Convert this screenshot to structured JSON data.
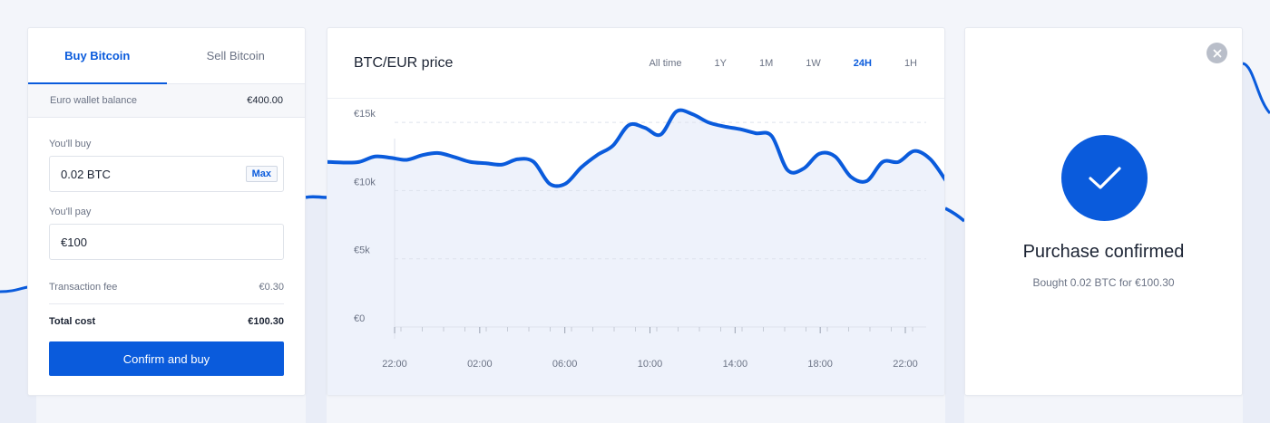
{
  "colors": {
    "accent": "#0a5bdc",
    "line": "#0a5bdc",
    "area": "#eef2fb",
    "background": "#f3f5fa",
    "muted_text": "#6b7385"
  },
  "buy_panel": {
    "tabs": [
      {
        "label": "Buy Bitcoin",
        "active": true
      },
      {
        "label": "Sell Bitcoin",
        "active": false
      }
    ],
    "balance": {
      "label": "Euro wallet balance",
      "value": "€400.00"
    },
    "buy_field": {
      "label": "You'll buy",
      "value": "0.02 BTC",
      "max_label": "Max"
    },
    "pay_field": {
      "label": "You'll pay",
      "value": "€100"
    },
    "fee": {
      "label": "Transaction fee",
      "value": "€0.30"
    },
    "total": {
      "label": "Total cost",
      "value": "€100.30"
    },
    "confirm_label": "Confirm and buy"
  },
  "chart_panel": {
    "title": "BTC/EUR price",
    "ranges": [
      {
        "label": "All time",
        "active": false
      },
      {
        "label": "1Y",
        "active": false
      },
      {
        "label": "1M",
        "active": false
      },
      {
        "label": "1W",
        "active": false
      },
      {
        "label": "24H",
        "active": true
      },
      {
        "label": "1H",
        "active": false
      }
    ]
  },
  "chart_data": {
    "type": "area",
    "title": "BTC/EUR price",
    "xlabel": "",
    "ylabel": "",
    "y_ticks": [
      {
        "value": 0,
        "label": "€0"
      },
      {
        "value": 5000,
        "label": "€5k"
      },
      {
        "value": 10000,
        "label": "€10k"
      },
      {
        "value": 15000,
        "label": "€15k"
      }
    ],
    "ylim": [
      0,
      16000
    ],
    "x_ticks": [
      "22:00",
      "02:00",
      "06:00",
      "10:00",
      "14:00",
      "18:00",
      "22:00"
    ],
    "grid": true,
    "series": [
      {
        "values": [
          12100,
          12050,
          12100,
          12500,
          12400,
          12250,
          12600,
          12750,
          12450,
          12100,
          12000,
          11900,
          12300,
          12100,
          10500,
          10500,
          11700,
          12600,
          13300,
          14800,
          14600,
          14100,
          15800,
          15600,
          15000,
          14700,
          14500,
          14200,
          14000,
          11500,
          11600,
          12700,
          12500,
          11000,
          10700,
          12100,
          12100,
          12900,
          12300,
          10700
        ]
      }
    ]
  },
  "confirmation": {
    "title": "Purchase confirmed",
    "subtitle": "Bought 0.02 BTC for €100.30"
  }
}
